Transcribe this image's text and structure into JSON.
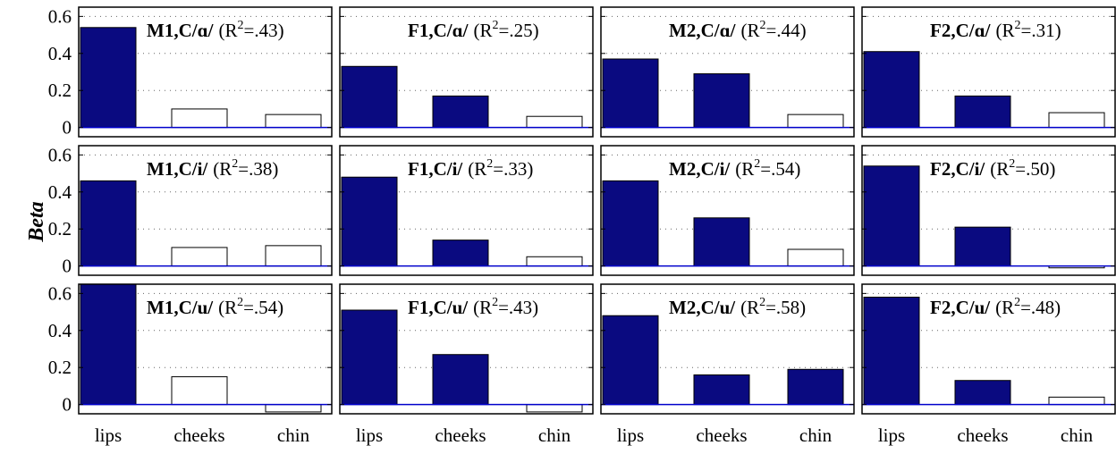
{
  "chart_data": {
    "type": "bar",
    "layout": "3x4 grid of small-multiple bar charts",
    "ylabel": "Beta",
    "categories": [
      "lips",
      "cheeks",
      "chin"
    ],
    "ylim": [
      -0.05,
      0.65
    ],
    "yticks": [
      0,
      0.2,
      0.4,
      0.6
    ],
    "ytick_labels": [
      "0",
      "0.2",
      "0.4",
      "0.6"
    ],
    "grid": "dotted horizontal",
    "colors": {
      "filled": "#0a0a80",
      "empty": "#ffffff",
      "zero_line": "#0000cc"
    },
    "panels": [
      {
        "speaker": "M1,C/ɑ/",
        "r2_text": "(R",
        "r2_sup": "2",
        "r2_value": "=.43)",
        "values": [
          0.54,
          0.1,
          0.07
        ],
        "filled": [
          true,
          false,
          false
        ]
      },
      {
        "speaker": "F1,C/ɑ/",
        "r2_text": "(R",
        "r2_sup": "2",
        "r2_value": "=.25)",
        "values": [
          0.33,
          0.17,
          0.06
        ],
        "filled": [
          true,
          true,
          false
        ]
      },
      {
        "speaker": "M2,C/ɑ/",
        "r2_text": "(R",
        "r2_sup": "2",
        "r2_value": "=.44)",
        "values": [
          0.37,
          0.29,
          0.07
        ],
        "filled": [
          true,
          true,
          false
        ]
      },
      {
        "speaker": "F2,C/ɑ/",
        "r2_text": "(R",
        "r2_sup": "2",
        "r2_value": "=.31)",
        "values": [
          0.41,
          0.17,
          0.08
        ],
        "filled": [
          true,
          true,
          false
        ]
      },
      {
        "speaker": "M1,C/i/",
        "r2_text": "(R",
        "r2_sup": "2",
        "r2_value": "=.38)",
        "values": [
          0.46,
          0.1,
          0.11
        ],
        "filled": [
          true,
          false,
          false
        ]
      },
      {
        "speaker": "F1,C/i/",
        "r2_text": "(R",
        "r2_sup": "2",
        "r2_value": "=.33)",
        "values": [
          0.48,
          0.14,
          0.05
        ],
        "filled": [
          true,
          true,
          false
        ]
      },
      {
        "speaker": "M2,C/i/",
        "r2_text": "(R",
        "r2_sup": "2",
        "r2_value": "=.54)",
        "values": [
          0.46,
          0.26,
          0.09
        ],
        "filled": [
          true,
          true,
          false
        ]
      },
      {
        "speaker": "F2,C/i/",
        "r2_text": "(R",
        "r2_sup": "2",
        "r2_value": "=.50)",
        "values": [
          0.54,
          0.21,
          -0.01
        ],
        "filled": [
          true,
          true,
          false
        ]
      },
      {
        "speaker": "M1,C/u/",
        "r2_text": "(R",
        "r2_sup": "2",
        "r2_value": "=.54)",
        "values": [
          0.65,
          0.15,
          -0.04
        ],
        "filled": [
          true,
          false,
          false
        ]
      },
      {
        "speaker": "F1,C/u/",
        "r2_text": "(R",
        "r2_sup": "2",
        "r2_value": "=.43)",
        "values": [
          0.51,
          0.27,
          -0.04
        ],
        "filled": [
          true,
          true,
          false
        ]
      },
      {
        "speaker": "M2,C/u/",
        "r2_text": "(R",
        "r2_sup": "2",
        "r2_value": "=.58)",
        "values": [
          0.48,
          0.16,
          0.19
        ],
        "filled": [
          true,
          true,
          true
        ]
      },
      {
        "speaker": "F2,C/u/",
        "r2_text": "(R",
        "r2_sup": "2",
        "r2_value": "=.48)",
        "values": [
          0.58,
          0.13,
          0.04
        ],
        "filled": [
          true,
          true,
          false
        ]
      }
    ]
  }
}
